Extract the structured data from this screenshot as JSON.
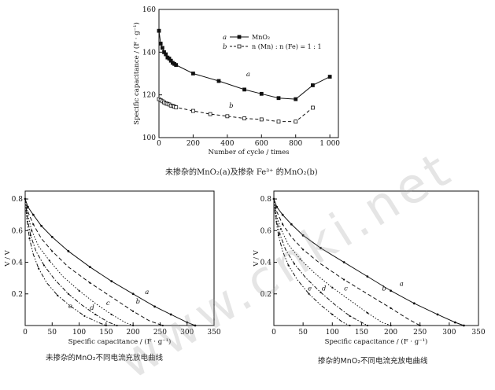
{
  "captions": {
    "top": "未掺杂的MnO₂(a)及掺杂 Fe³⁺ 的MnO₂(b)",
    "bottom_left": "未掺杂的MnO₂不同电流充放电曲线",
    "bottom_right": "掺杂的MnO₂不同电流充放电曲线"
  },
  "watermark": "www.cnki.net",
  "chart_data": [
    {
      "type": "line",
      "xlabel": "Number of cycle / times",
      "ylabel": "Specific capacitance / (F · g⁻¹)",
      "xlim": [
        0,
        1050
      ],
      "ylim": [
        100,
        160
      ],
      "xticks": [
        0,
        200,
        400,
        600,
        800,
        1000
      ],
      "xtick_labels": [
        "0",
        "200",
        "400",
        "600",
        "800",
        "1 000"
      ],
      "yticks": [
        100,
        120,
        140,
        160
      ],
      "legend_position": "top-right",
      "series": [
        {
          "name": "MnO₂",
          "legend_marker": "a",
          "curve_label": "a",
          "style": "solid-filled-square",
          "x": [
            0,
            10,
            20,
            30,
            40,
            50,
            60,
            70,
            80,
            90,
            100,
            200,
            350,
            500,
            600,
            700,
            800,
            900,
            1000
          ],
          "values": [
            150,
            144,
            142,
            140,
            139,
            137.5,
            137,
            136,
            135,
            134.5,
            134,
            130,
            126.5,
            122.5,
            120.5,
            118.5,
            118,
            124.5,
            128.5
          ]
        },
        {
          "name": "n (Mn) : n (Fe) = 1 : 1",
          "legend_marker": "b",
          "curve_label": "b",
          "style": "dashed-open-square",
          "x": [
            0,
            10,
            20,
            30,
            40,
            50,
            60,
            70,
            80,
            90,
            100,
            200,
            300,
            400,
            500,
            600,
            700,
            800,
            900
          ],
          "values": [
            118,
            117.5,
            117,
            116.5,
            116,
            115.8,
            115.5,
            115,
            114.8,
            114.5,
            114.2,
            112.5,
            111,
            110,
            109,
            108.5,
            107.5,
            107.5,
            114
          ]
        }
      ]
    },
    {
      "type": "line",
      "xlabel": "Specific capacitance / (F · g⁻¹)",
      "ylabel": "V / V",
      "xlim": [
        0,
        350
      ],
      "ylim": [
        0,
        0.85
      ],
      "xticks": [
        0,
        50,
        100,
        150,
        200,
        250,
        300,
        350
      ],
      "yticks": [
        0.2,
        0.4,
        0.6,
        0.8
      ],
      "series": [
        {
          "label": "a",
          "style": "solid-marker",
          "x": [
            0,
            5,
            15,
            30,
            50,
            80,
            120,
            160,
            200,
            240,
            270,
            300,
            315
          ],
          "values": [
            0.8,
            0.75,
            0.7,
            0.63,
            0.56,
            0.47,
            0.37,
            0.28,
            0.2,
            0.12,
            0.07,
            0.02,
            0
          ]
        },
        {
          "label": "b",
          "style": "dash",
          "x": [
            0,
            5,
            15,
            30,
            50,
            80,
            120,
            160,
            200,
            230,
            255
          ],
          "values": [
            0.8,
            0.72,
            0.64,
            0.55,
            0.47,
            0.37,
            0.27,
            0.18,
            0.09,
            0.03,
            0
          ]
        },
        {
          "label": "c",
          "style": "dot",
          "x": [
            0,
            5,
            12,
            25,
            45,
            70,
            100,
            130,
            160,
            185,
            200
          ],
          "values": [
            0.8,
            0.7,
            0.6,
            0.5,
            0.41,
            0.31,
            0.22,
            0.14,
            0.07,
            0.02,
            0
          ]
        },
        {
          "label": "d",
          "style": "dash-dot",
          "x": [
            0,
            4,
            10,
            20,
            35,
            55,
            80,
            105,
            130,
            155,
            170
          ],
          "values": [
            0.8,
            0.68,
            0.57,
            0.47,
            0.38,
            0.29,
            0.2,
            0.13,
            0.07,
            0.02,
            0
          ]
        },
        {
          "label": "e",
          "style": "dash-dot-dot",
          "x": [
            0,
            3,
            8,
            15,
            25,
            40,
            60,
            85,
            110,
            135,
            150
          ],
          "values": [
            0.8,
            0.67,
            0.55,
            0.45,
            0.36,
            0.27,
            0.19,
            0.12,
            0.06,
            0.02,
            0
          ]
        }
      ]
    },
    {
      "type": "line",
      "xlabel": "Specific capacitance / (F · g⁻¹)",
      "ylabel": "V / V",
      "xlim": [
        0,
        350
      ],
      "ylim": [
        0,
        0.85
      ],
      "xticks": [
        0,
        50,
        100,
        150,
        200,
        250,
        300,
        350
      ],
      "yticks": [
        0.2,
        0.4,
        0.6,
        0.8
      ],
      "series": [
        {
          "label": "a",
          "style": "solid-marker",
          "x": [
            0,
            5,
            15,
            30,
            50,
            80,
            120,
            160,
            200,
            240,
            280,
            310,
            325
          ],
          "values": [
            0.8,
            0.75,
            0.7,
            0.64,
            0.57,
            0.49,
            0.4,
            0.31,
            0.22,
            0.14,
            0.07,
            0.02,
            0
          ]
        },
        {
          "label": "b",
          "style": "dash",
          "x": [
            0,
            5,
            15,
            30,
            50,
            80,
            120,
            160,
            200,
            230,
            250
          ],
          "values": [
            0.8,
            0.72,
            0.64,
            0.56,
            0.48,
            0.39,
            0.29,
            0.2,
            0.11,
            0.04,
            0
          ]
        },
        {
          "label": "c",
          "style": "dot",
          "x": [
            0,
            4,
            12,
            25,
            45,
            70,
            100,
            130,
            160,
            185,
            200
          ],
          "values": [
            0.8,
            0.7,
            0.61,
            0.51,
            0.42,
            0.33,
            0.24,
            0.16,
            0.08,
            0.02,
            0
          ]
        },
        {
          "label": "d",
          "style": "dash-dot",
          "x": [
            0,
            4,
            10,
            20,
            35,
            55,
            80,
            105,
            130,
            150,
            160
          ],
          "values": [
            0.8,
            0.68,
            0.58,
            0.48,
            0.39,
            0.3,
            0.21,
            0.13,
            0.06,
            0.02,
            0
          ]
        },
        {
          "label": "e",
          "style": "dash-dot-dot",
          "x": [
            0,
            3,
            8,
            15,
            25,
            40,
            60,
            80,
            100,
            118,
            130
          ],
          "values": [
            0.8,
            0.68,
            0.57,
            0.47,
            0.38,
            0.29,
            0.2,
            0.13,
            0.07,
            0.02,
            0
          ]
        }
      ]
    }
  ]
}
